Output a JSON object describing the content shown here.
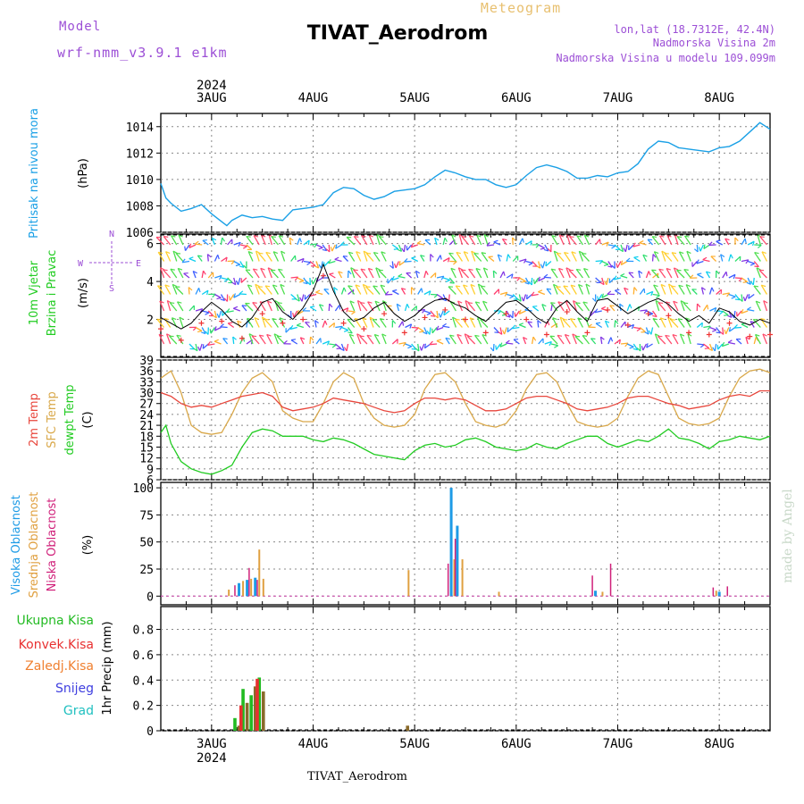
{
  "header": {
    "model_label": "Model",
    "model_name": "wrf-nmm_v3.9.1  e1km",
    "product": "Meteogram",
    "station": "TIVAT_Aerodrom",
    "lonlat": "lon,lat (18.7312E, 42.4N)",
    "elev": "Nadmorska Visina 2m",
    "elev_model": "Nadmorska Visina u modelu 109.099m",
    "footer_station": "TIVAT_Aerodrom",
    "credit": "made by Angel"
  },
  "colors": {
    "pressure": "#1aa0e6",
    "temp2m": "#e8463c",
    "sfc": "#d9a84a",
    "dewpt": "#22cc22",
    "high": "#1e9be6",
    "mid": "#e0a040",
    "low": "#d0207a",
    "total": "#22bb22",
    "conv": "#e83030",
    "frozen": "#f08030",
    "snow": "#4040e0",
    "hail": "#20c0c0",
    "grid": "#888888"
  },
  "chart_data": [
    {
      "type": "line",
      "id": "pressure",
      "ylabel": [
        "Pritisak na nivou mora",
        "(hPa)"
      ],
      "ylim": [
        1006,
        1015
      ],
      "yticks": [
        1006,
        1008,
        1010,
        1012,
        1014
      ],
      "top_date_year": "2024",
      "x_dates": [
        "3AUG",
        "4AUG",
        "5AUG",
        "6AUG",
        "7AUG",
        "8AUG"
      ],
      "x_range_days": [
        2.5,
        8.5
      ],
      "series": [
        {
          "key": "pressure",
          "x": [
            2.5,
            2.55,
            2.6,
            2.7,
            2.8,
            2.9,
            3.0,
            3.1,
            3.15,
            3.2,
            3.3,
            3.4,
            3.5,
            3.6,
            3.7,
            3.8,
            3.9,
            4.0,
            4.1,
            4.2,
            4.3,
            4.4,
            4.5,
            4.6,
            4.7,
            4.8,
            4.9,
            5.0,
            5.1,
            5.2,
            5.3,
            5.4,
            5.5,
            5.6,
            5.7,
            5.8,
            5.9,
            6.0,
            6.1,
            6.2,
            6.3,
            6.4,
            6.5,
            6.6,
            6.7,
            6.8,
            6.9,
            7.0,
            7.1,
            7.2,
            7.3,
            7.4,
            7.5,
            7.6,
            7.7,
            7.8,
            7.9,
            8.0,
            8.1,
            8.2,
            8.3,
            8.4,
            8.5
          ],
          "y": [
            1009.7,
            1008.6,
            1008.2,
            1007.6,
            1007.8,
            1008.1,
            1007.4,
            1006.8,
            1006.5,
            1006.9,
            1007.3,
            1007.1,
            1007.2,
            1007.0,
            1006.9,
            1007.7,
            1007.8,
            1007.9,
            1008.1,
            1009.0,
            1009.4,
            1009.3,
            1008.8,
            1008.5,
            1008.7,
            1009.1,
            1009.2,
            1009.3,
            1009.6,
            1010.2,
            1010.7,
            1010.5,
            1010.2,
            1010.0,
            1010.0,
            1009.6,
            1009.4,
            1009.6,
            1010.3,
            1010.9,
            1011.1,
            1010.9,
            1010.6,
            1010.1,
            1010.1,
            1010.3,
            1010.2,
            1010.5,
            1010.6,
            1011.2,
            1012.3,
            1012.9,
            1012.8,
            1012.4,
            1012.3,
            1012.2,
            1012.1,
            1012.4,
            1012.5,
            1012.9,
            1013.6,
            1014.3,
            1013.8
          ]
        }
      ]
    },
    {
      "type": "line",
      "id": "wind",
      "ylabel": [
        "10m Vjetar",
        "Brzina i Pravac",
        "(m/s)"
      ],
      "compass": [
        "N",
        "S",
        "W",
        "E"
      ],
      "ylim": [
        0,
        6.5
      ],
      "yticks": [
        2,
        4,
        6
      ],
      "series": [
        {
          "key": "wind_speed",
          "x": [
            2.5,
            2.6,
            2.7,
            2.8,
            2.9,
            3.0,
            3.1,
            3.2,
            3.3,
            3.4,
            3.5,
            3.6,
            3.7,
            3.8,
            3.9,
            4.0,
            4.1,
            4.2,
            4.3,
            4.4,
            4.5,
            4.6,
            4.7,
            4.8,
            4.9,
            5.0,
            5.1,
            5.2,
            5.3,
            5.4,
            5.5,
            5.6,
            5.7,
            5.8,
            5.9,
            6.0,
            6.1,
            6.2,
            6.3,
            6.4,
            6.5,
            6.6,
            6.7,
            6.8,
            6.9,
            7.0,
            7.1,
            7.2,
            7.3,
            7.4,
            7.5,
            7.6,
            7.7,
            7.8,
            7.9,
            8.0,
            8.1,
            8.2,
            8.3,
            8.4,
            8.5
          ],
          "y": [
            2.1,
            1.8,
            1.5,
            1.8,
            2.4,
            2.9,
            2.5,
            1.9,
            1.6,
            2.1,
            2.9,
            3.1,
            2.4,
            2.0,
            2.6,
            3.5,
            4.9,
            3.5,
            2.4,
            1.9,
            2.1,
            2.6,
            2.9,
            2.3,
            1.9,
            2.2,
            2.7,
            3.0,
            3.1,
            2.8,
            2.6,
            2.2,
            1.9,
            2.4,
            2.9,
            3.0,
            2.6,
            2.1,
            1.8,
            2.6,
            3.0,
            2.4,
            1.9,
            3.0,
            3.1,
            2.7,
            2.3,
            2.6,
            2.9,
            3.1,
            2.8,
            2.3,
            1.9,
            2.2,
            1.8,
            2.6,
            2.4,
            1.9,
            1.7,
            2.0,
            1.8
          ]
        }
      ]
    },
    {
      "type": "line",
      "id": "temperature",
      "ylabel": [
        "2m Temp",
        "SFC Temp",
        "dewpt Temp",
        "(C)"
      ],
      "ylim": [
        6,
        39
      ],
      "yticks": [
        6,
        9,
        12,
        15,
        18,
        21,
        24,
        27,
        30,
        33,
        36,
        39
      ],
      "series": [
        {
          "key": "temp2m",
          "x": [
            2.5,
            2.6,
            2.7,
            2.8,
            2.9,
            3.0,
            3.1,
            3.2,
            3.3,
            3.4,
            3.5,
            3.6,
            3.7,
            3.8,
            3.9,
            4.0,
            4.1,
            4.2,
            4.3,
            4.4,
            4.5,
            4.6,
            4.7,
            4.8,
            4.9,
            5.0,
            5.1,
            5.2,
            5.3,
            5.4,
            5.5,
            5.6,
            5.7,
            5.8,
            5.9,
            6.0,
            6.1,
            6.2,
            6.3,
            6.4,
            6.5,
            6.6,
            6.7,
            6.8,
            6.9,
            7.0,
            7.1,
            7.2,
            7.3,
            7.4,
            7.5,
            7.6,
            7.7,
            7.8,
            7.9,
            8.0,
            8.1,
            8.2,
            8.3,
            8.4,
            8.5
          ],
          "y": [
            30,
            29,
            27,
            26,
            26.5,
            26,
            27,
            28,
            29,
            29.5,
            30,
            29,
            26,
            25,
            25.5,
            26,
            27,
            28.5,
            28,
            27.5,
            27,
            26,
            25,
            24.5,
            25,
            27,
            28.5,
            28.5,
            28,
            28.5,
            28,
            26.5,
            25,
            25,
            25.5,
            27,
            28.5,
            29,
            29,
            28,
            27,
            25.5,
            25,
            25.5,
            26,
            27,
            28.5,
            29,
            29,
            28,
            27,
            26.5,
            25.5,
            26,
            26.5,
            28,
            29,
            29.5,
            29,
            30.5,
            30.5
          ]
        },
        {
          "key": "sfc",
          "x": [
            2.5,
            2.6,
            2.7,
            2.8,
            2.9,
            3.0,
            3.1,
            3.2,
            3.3,
            3.4,
            3.5,
            3.6,
            3.7,
            3.8,
            3.9,
            4.0,
            4.1,
            4.2,
            4.3,
            4.4,
            4.5,
            4.6,
            4.7,
            4.8,
            4.9,
            5.0,
            5.1,
            5.2,
            5.3,
            5.4,
            5.5,
            5.6,
            5.7,
            5.8,
            5.9,
            6.0,
            6.1,
            6.2,
            6.3,
            6.4,
            6.5,
            6.6,
            6.7,
            6.8,
            6.9,
            7.0,
            7.1,
            7.2,
            7.3,
            7.4,
            7.5,
            7.6,
            7.7,
            7.8,
            7.9,
            8.0,
            8.1,
            8.2,
            8.3,
            8.4,
            8.5
          ],
          "y": [
            34,
            36,
            30,
            21,
            19,
            18.5,
            19,
            24,
            30,
            34,
            35.5,
            33,
            25,
            23,
            22,
            22,
            27,
            33,
            35.5,
            34,
            27,
            23,
            21,
            20.5,
            21,
            24,
            31,
            35,
            35.5,
            33,
            27,
            22,
            21,
            20.5,
            21.5,
            25,
            31,
            35,
            35.5,
            33,
            27,
            22,
            21,
            20.5,
            21,
            23,
            29,
            34,
            36,
            35,
            29,
            23,
            21.5,
            21,
            21.5,
            23,
            29,
            34,
            36,
            36.5,
            35.5
          ]
        },
        {
          "key": "dewpt",
          "x": [
            2.5,
            2.55,
            2.6,
            2.7,
            2.8,
            2.9,
            3.0,
            3.1,
            3.2,
            3.3,
            3.4,
            3.5,
            3.6,
            3.7,
            3.8,
            3.9,
            4.0,
            4.1,
            4.2,
            4.3,
            4.4,
            4.5,
            4.6,
            4.7,
            4.8,
            4.9,
            5.0,
            5.1,
            5.2,
            5.3,
            5.4,
            5.5,
            5.6,
            5.7,
            5.8,
            5.9,
            6.0,
            6.1,
            6.2,
            6.3,
            6.4,
            6.5,
            6.6,
            6.7,
            6.8,
            6.9,
            7.0,
            7.1,
            7.2,
            7.3,
            7.4,
            7.5,
            7.6,
            7.7,
            7.8,
            7.9,
            8.0,
            8.1,
            8.2,
            8.3,
            8.4,
            8.5
          ],
          "y": [
            19,
            21,
            16,
            11,
            9,
            8,
            7.5,
            8.5,
            10,
            15,
            19,
            20,
            19.5,
            18,
            18,
            18,
            17,
            16.5,
            17.5,
            17,
            16,
            14.5,
            13,
            12.5,
            12,
            11.5,
            14,
            15.5,
            16,
            15,
            15.5,
            17,
            17.5,
            16.5,
            15,
            14.5,
            14,
            14.5,
            16,
            15,
            14.5,
            16,
            17,
            18,
            18,
            16,
            15,
            16,
            17,
            16.5,
            18,
            20,
            17.5,
            17,
            16,
            14.5,
            16.5,
            17,
            18,
            17.5,
            17,
            18
          ]
        }
      ]
    },
    {
      "type": "bar",
      "id": "clouds",
      "ylabel": [
        "Visoka Oblacnost",
        "Srednja Oblacnost",
        "Niska Oblacnost",
        "(%)"
      ],
      "ylim": [
        -8,
        105
      ],
      "yticks": [
        0,
        25,
        50,
        75,
        100
      ],
      "series": [
        {
          "key": "high",
          "x": [
            3.27,
            3.35,
            3.43,
            5.36,
            5.42,
            6.78,
            8.0
          ],
          "values": [
            12,
            15,
            17,
            100,
            65,
            5,
            4
          ]
        },
        {
          "key": "mid",
          "x": [
            3.17,
            3.31,
            3.39,
            3.47,
            3.51,
            4.94,
            5.39,
            5.47,
            5.83,
            6.85,
            7.97
          ],
          "values": [
            6,
            14,
            16,
            43,
            16,
            24,
            34,
            34,
            4,
            4,
            5
          ]
        },
        {
          "key": "low",
          "x": [
            3.23,
            3.37,
            3.45,
            5.33,
            5.4,
            6.75,
            6.93,
            7.94,
            8.08
          ],
          "values": [
            10,
            26,
            15,
            30,
            53,
            19,
            30,
            8,
            9
          ]
        }
      ]
    },
    {
      "type": "bar",
      "id": "precip",
      "ylabel": [
        "1hr Precip (mm)"
      ],
      "legend": [
        "Ukupna  Kisa",
        "Konvek.Kisa",
        "Zaledj.Kisa",
        "Snijeg",
        "Grad"
      ],
      "ylim": [
        0,
        0.98
      ],
      "yticks": [
        0,
        0.2,
        0.4,
        0.6,
        0.8
      ],
      "bottom_date_year": "2024",
      "series": [
        {
          "key": "total",
          "x": [
            3.23,
            3.31,
            3.39,
            3.47
          ],
          "values": [
            0.1,
            0.33,
            0.28,
            0.42
          ]
        },
        {
          "key": "frozen",
          "x": [
            3.27,
            3.35,
            3.43,
            3.51,
            4.93
          ],
          "values": [
            0.04,
            0.22,
            0.35,
            0.31,
            0.04
          ]
        },
        {
          "key": "conv",
          "x": [
            3.29,
            3.45
          ],
          "values": [
            0.2,
            0.41
          ]
        }
      ]
    }
  ]
}
